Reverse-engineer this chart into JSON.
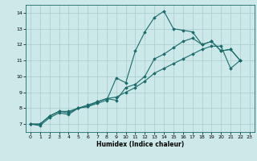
{
  "xlabel": "Humidex (Indice chaleur)",
  "bg_color": "#cce8e8",
  "line_color": "#1a6b6b",
  "grid_color": "#aacccc",
  "xlim": [
    -0.5,
    23.5
  ],
  "ylim": [
    6.5,
    14.5
  ],
  "xticks": [
    0,
    1,
    2,
    3,
    4,
    5,
    6,
    7,
    8,
    9,
    10,
    11,
    12,
    13,
    14,
    15,
    16,
    17,
    18,
    19,
    20,
    21,
    22,
    23
  ],
  "yticks": [
    7,
    8,
    9,
    10,
    11,
    12,
    13,
    14
  ],
  "series": [
    [
      7.0,
      6.9,
      7.4,
      7.7,
      7.6,
      8.0,
      8.1,
      8.3,
      8.5,
      9.9,
      9.6,
      11.6,
      12.8,
      13.7,
      14.1,
      13.0,
      12.9,
      12.8,
      12.0,
      12.2,
      11.6,
      11.7,
      11.0
    ],
    [
      7.0,
      7.0,
      7.5,
      7.8,
      7.7,
      8.0,
      8.1,
      8.4,
      8.6,
      8.5,
      9.3,
      9.5,
      10.0,
      11.1,
      11.4,
      11.8,
      12.2,
      12.4,
      12.0,
      12.2,
      11.6,
      11.7,
      11.0
    ],
    [
      7.0,
      7.0,
      7.5,
      7.8,
      7.8,
      8.0,
      8.2,
      8.4,
      8.6,
      8.7,
      9.0,
      9.3,
      9.7,
      10.2,
      10.5,
      10.8,
      11.1,
      11.4,
      11.7,
      11.9,
      11.9,
      10.5,
      11.0
    ]
  ]
}
